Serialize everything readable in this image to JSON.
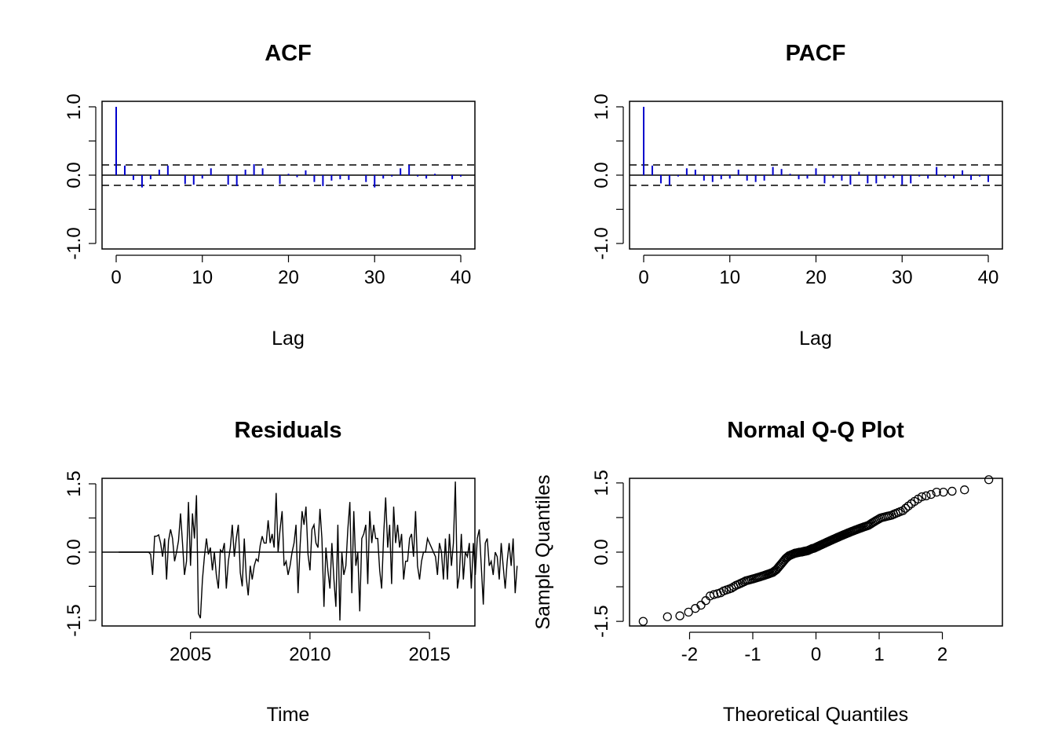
{
  "chart_data": [
    {
      "type": "bar",
      "title": "ACF",
      "xlabel": "Lag",
      "ylabel": "",
      "xlim": [
        0,
        40
      ],
      "ylim": [
        -1.0,
        1.0
      ],
      "x_ticks": [
        "0",
        "10",
        "20",
        "30",
        "40"
      ],
      "y_ticks": [
        "-1.0",
        "0.0",
        "1.0"
      ],
      "ci_bound": 0.15,
      "lags": [
        0,
        1,
        2,
        3,
        4,
        5,
        6,
        7,
        8,
        9,
        10,
        11,
        12,
        13,
        14,
        15,
        16,
        17,
        18,
        19,
        20,
        21,
        22,
        23,
        24,
        25,
        26,
        27,
        28,
        29,
        30,
        31,
        32,
        33,
        34,
        35,
        36,
        37,
        38,
        39,
        40
      ],
      "values": [
        1.0,
        0.14,
        -0.07,
        -0.18,
        -0.06,
        0.08,
        0.14,
        0.0,
        -0.13,
        -0.14,
        -0.05,
        0.1,
        0.0,
        -0.14,
        -0.16,
        0.08,
        0.16,
        0.1,
        0.0,
        -0.13,
        0.02,
        -0.03,
        0.07,
        -0.1,
        -0.16,
        -0.08,
        -0.06,
        -0.07,
        0.0,
        -0.1,
        -0.18,
        -0.05,
        -0.02,
        0.1,
        0.15,
        -0.02,
        -0.05,
        0.02,
        0.0,
        -0.06,
        -0.02
      ],
      "color": "#0000cd"
    },
    {
      "type": "bar",
      "title": "PACF",
      "xlabel": "Lag",
      "ylabel": "",
      "xlim": [
        0,
        40
      ],
      "ylim": [
        -1.0,
        1.0
      ],
      "x_ticks": [
        "0",
        "10",
        "20",
        "30",
        "40"
      ],
      "y_ticks": [
        "-1.0",
        "0.0",
        "1.0"
      ],
      "ci_bound": 0.15,
      "lags": [
        0,
        1,
        2,
        3,
        4,
        5,
        6,
        7,
        8,
        9,
        10,
        11,
        12,
        13,
        14,
        15,
        16,
        17,
        18,
        19,
        20,
        21,
        22,
        23,
        24,
        25,
        26,
        27,
        28,
        29,
        30,
        31,
        32,
        33,
        34,
        35,
        36,
        37,
        38,
        39,
        40
      ],
      "values": [
        1.0,
        0.14,
        -0.12,
        -0.15,
        -0.02,
        0.1,
        0.08,
        -0.08,
        -0.1,
        -0.06,
        -0.05,
        0.08,
        -0.08,
        -0.1,
        -0.08,
        0.12,
        0.09,
        0.02,
        -0.06,
        -0.05,
        0.1,
        -0.12,
        -0.04,
        -0.08,
        -0.14,
        0.05,
        -0.12,
        -0.12,
        -0.05,
        -0.04,
        -0.14,
        -0.12,
        -0.02,
        -0.05,
        0.12,
        -0.03,
        -0.05,
        0.07,
        -0.07,
        -0.02,
        -0.1
      ],
      "color": "#0000cd"
    },
    {
      "type": "line",
      "title": "Residuals",
      "xlabel": "Time",
      "ylabel": "",
      "xlim": [
        2001.3,
        2016.9
      ],
      "ylim": [
        -1.5,
        1.5
      ],
      "x_ticks": [
        "2005",
        "2010",
        "2015"
      ],
      "y_ticks": [
        "-1.5",
        "0.0",
        "1.5"
      ],
      "start": 2002.0,
      "frequency": 12,
      "values": [
        0,
        0,
        0,
        0,
        0,
        0,
        0,
        0,
        0,
        0,
        0,
        0,
        0,
        0,
        0,
        0,
        -0.05,
        -0.5,
        0.35,
        0.35,
        0.38,
        0.2,
        -0.1,
        0.3,
        -0.6,
        0.25,
        0.5,
        0.3,
        -0.2,
        0.0,
        0.25,
        0.85,
        0.2,
        -0.5,
        -0.2,
        1.1,
        -0.3,
        0.85,
        0.3,
        1.25,
        -1.35,
        -1.45,
        -0.6,
        -0.1,
        0.3,
        -0.05,
        0.1,
        -0.4,
        0.0,
        -0.5,
        -0.8,
        0.05,
        0.0,
        0.2,
        -0.8,
        -0.2,
        0.1,
        0.6,
        -0.1,
        0.3,
        0.6,
        -0.45,
        -0.75,
        0.3,
        -0.55,
        -0.95,
        -0.3,
        -0.6,
        -0.3,
        -0.15,
        -0.2,
        0.15,
        0.35,
        0.2,
        0.2,
        0.7,
        0.2,
        0.4,
        0.1,
        1.3,
        0.0,
        0.5,
        0.9,
        -0.3,
        -0.2,
        -0.5,
        -0.3,
        0.0,
        0.2,
        0.6,
        -0.9,
        0.1,
        0.9,
        0.6,
        1.0,
        -0.05,
        -0.4,
        0.5,
        0.6,
        0.2,
        0.1,
        0.95,
        0.3,
        -1.2,
        0.1,
        -0.4,
        -0.8,
        0.2,
        -0.6,
        -1.2,
        0.6,
        -1.5,
        0.0,
        -0.5,
        -0.3,
        0.5,
        1.1,
        -0.9,
        0.9,
        -0.3,
        0.0,
        -1.3,
        0.3,
        0.4,
        0.6,
        -0.7,
        0.9,
        0.2,
        0.6,
        0.3,
        0.3,
        -0.4,
        -0.8,
        0.4,
        1.2,
        0.1,
        0.6,
        -0.7,
        1.0,
        0.2,
        0.6,
        0.1,
        0.4,
        -0.6,
        -0.2,
        -0.2,
        0.3,
        0.4,
        -0.1,
        0.9,
        -0.3,
        -0.6,
        -0.2,
        0.0,
        0.0,
        0.3,
        0.2,
        0.1,
        0.0,
        -0.1,
        -0.5,
        0.2,
        0.0,
        -0.6,
        0.3,
        -0.6,
        0.4,
        -0.3,
        0.2,
        1.55,
        -0.8,
        -0.5,
        0.4,
        -0.6,
        0.0,
        -0.1,
        0.2,
        -0.8,
        0.2,
        -0.5,
        0.3,
        0.5,
        -0.3,
        -1.15,
        0.2,
        0.3,
        -0.3,
        -0.2,
        -0.5,
        0.0,
        -0.1,
        -0.6,
        0.2,
        -0.3,
        -0.8,
        -0.2,
        0.2,
        -0.3,
        0.3,
        -0.9,
        -0.3
      ]
    },
    {
      "type": "scatter",
      "title": "Normal Q-Q Plot",
      "xlabel": "Theoretical Quantiles",
      "ylabel": "Sample Quantiles",
      "xlim": [
        -2.95,
        2.95
      ],
      "ylim": [
        -1.6,
        1.6
      ],
      "x_ticks": [
        "-2",
        "-1",
        "0",
        "1",
        "2"
      ],
      "y_ticks": [
        "-1.5",
        "0.0",
        "1.5"
      ],
      "n": 160,
      "sample_quantiles": [
        -1.5,
        -1.4,
        -1.38,
        -1.3,
        -1.22,
        -1.15,
        -1.05,
        -0.95,
        -0.92,
        -0.9,
        -0.88,
        -0.84,
        -0.82,
        -0.8,
        -0.78,
        -0.75,
        -0.72,
        -0.7,
        -0.68,
        -0.66,
        -0.64,
        -0.62,
        -0.61,
        -0.6,
        -0.59,
        -0.58,
        -0.57,
        -0.56,
        -0.55,
        -0.54,
        -0.53,
        -0.52,
        -0.51,
        -0.5,
        -0.49,
        -0.48,
        -0.47,
        -0.46,
        -0.45,
        -0.44,
        -0.42,
        -0.4,
        -0.38,
        -0.35,
        -0.32,
        -0.29,
        -0.26,
        -0.23,
        -0.2,
        -0.17,
        -0.14,
        -0.12,
        -0.1,
        -0.08,
        -0.07,
        -0.06,
        -0.05,
        -0.04,
        -0.03,
        -0.02,
        -0.02,
        -0.01,
        -0.01,
        0.0,
        0.0,
        0.0,
        0.01,
        0.01,
        0.02,
        0.02,
        0.03,
        0.03,
        0.04,
        0.05,
        0.06,
        0.07,
        0.08,
        0.08,
        0.09,
        0.1,
        0.11,
        0.12,
        0.13,
        0.14,
        0.15,
        0.16,
        0.17,
        0.18,
        0.19,
        0.2,
        0.21,
        0.22,
        0.23,
        0.24,
        0.25,
        0.26,
        0.27,
        0.28,
        0.29,
        0.3,
        0.31,
        0.32,
        0.33,
        0.34,
        0.35,
        0.36,
        0.37,
        0.38,
        0.39,
        0.4,
        0.41,
        0.42,
        0.43,
        0.44,
        0.45,
        0.46,
        0.47,
        0.48,
        0.49,
        0.5,
        0.51,
        0.52,
        0.53,
        0.54,
        0.55,
        0.56,
        0.57,
        0.58,
        0.6,
        0.62,
        0.64,
        0.66,
        0.68,
        0.7,
        0.72,
        0.74,
        0.75,
        0.76,
        0.77,
        0.78,
        0.79,
        0.8,
        0.82,
        0.84,
        0.86,
        0.88,
        0.9,
        0.95,
        1.0,
        1.05,
        1.1,
        1.15,
        1.2,
        1.22,
        1.25,
        1.3,
        1.3,
        1.32,
        1.35,
        1.57
      ],
      "marker": "open-circle"
    }
  ]
}
